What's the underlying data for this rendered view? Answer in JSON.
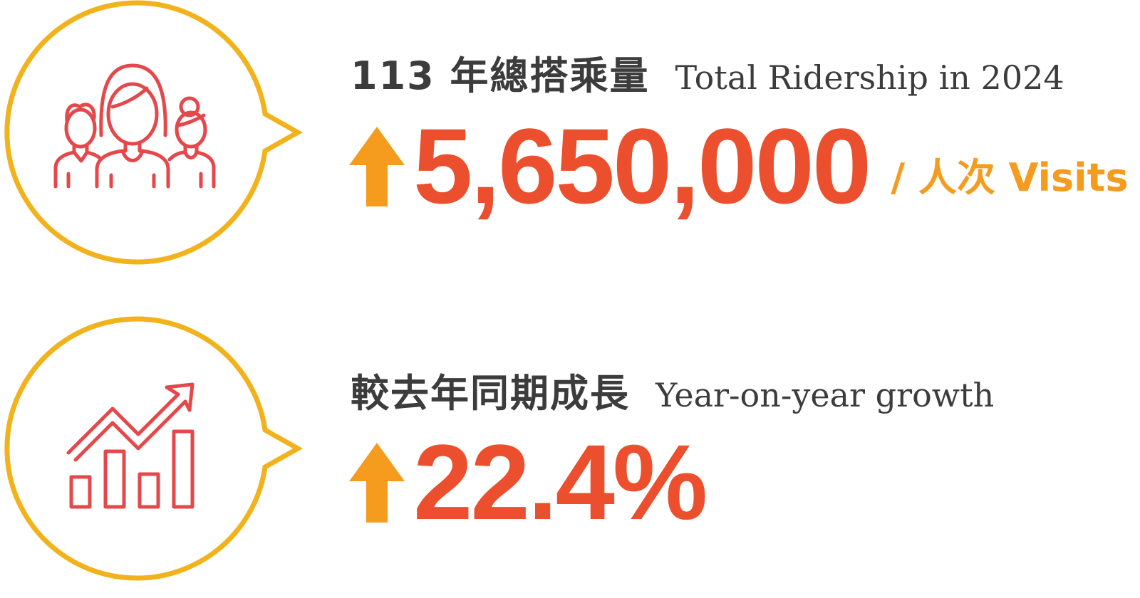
{
  "colors": {
    "bubble_outline": "#F2B21B",
    "icon_stroke": "#E5484A",
    "number": "#EB4F2D",
    "arrow": "#F59B1E",
    "unit": "#F59B1E",
    "title": "#3C3C3C"
  },
  "stats": [
    {
      "icon": "people-group-icon",
      "title_zh": "113 年總搭乘量",
      "title_en": "Total Ridership in 2024",
      "value": "5,650,000",
      "unit": "/ 人次 Visits"
    },
    {
      "icon": "growth-chart-icon",
      "title_zh": "較去年同期成長",
      "title_en": "Year-on-year growth",
      "value": "22.4%",
      "unit": ""
    }
  ]
}
